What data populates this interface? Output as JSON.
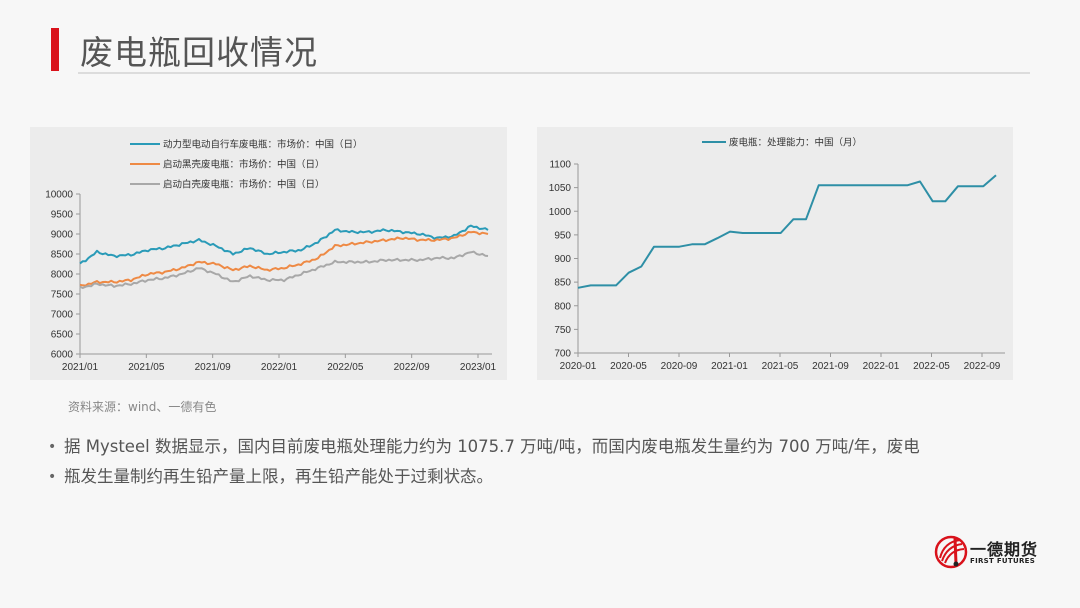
{
  "header": {
    "title": "废电瓶回收情况",
    "accent_color": "#d9121b"
  },
  "left_chart": {
    "legend": [
      {
        "label": "动力型电动自行车废电瓶：市场价：中国（日）",
        "color": "#2a9bb8"
      },
      {
        "label": "启动黑壳废电瓶：市场价：中国（日）",
        "color": "#ee8a45"
      },
      {
        "label": "启动白壳废电瓶：市场价：中国（日）",
        "color": "#a8a8a8"
      }
    ],
    "y_ticks": [
      "10000",
      "9500",
      "9000",
      "8500",
      "8000",
      "7500",
      "7000",
      "6500",
      "6000"
    ],
    "x_ticks": [
      "2021/01",
      "2021/05",
      "2021/09",
      "2022/01",
      "2022/05",
      "2022/09",
      "2023/01"
    ]
  },
  "right_chart": {
    "legend": [
      {
        "label": "废电瓶：处理能力：中国（月）",
        "color": "#2e8fa6"
      }
    ],
    "y_ticks": [
      "1100",
      "1050",
      "1000",
      "950",
      "900",
      "850",
      "800",
      "750",
      "700"
    ],
    "x_ticks": [
      "2020-01",
      "2020-05",
      "2020-09",
      "2021-01",
      "2021-05",
      "2021-09",
      "2022-01",
      "2022-05",
      "2022-09"
    ]
  },
  "chart_data": [
    {
      "type": "line",
      "title": "",
      "xlabel": "",
      "ylabel": "",
      "ylim": [
        6000,
        10000
      ],
      "y_ticks": [
        6000,
        6500,
        7000,
        7500,
        8000,
        8500,
        9000,
        9500,
        10000
      ],
      "x_tick_labels": [
        "2021/01",
        "2021/05",
        "2021/09",
        "2022/01",
        "2022/05",
        "2022/09",
        "2023/01"
      ],
      "legend_position": "top",
      "grid": false,
      "x": [
        "2021/01",
        "2021/02",
        "2021/03",
        "2021/04",
        "2021/05",
        "2021/06",
        "2021/07",
        "2021/08",
        "2021/09",
        "2021/10",
        "2021/11",
        "2021/12",
        "2022/01",
        "2022/02",
        "2022/03",
        "2022/04",
        "2022/05",
        "2022/06",
        "2022/07",
        "2022/08",
        "2022/09",
        "2022/10",
        "2022/11",
        "2022/12",
        "2023/01"
      ],
      "series": [
        {
          "name": "动力型电动自行车废电瓶：市场价：中国（日）",
          "color": "#2a9bb8",
          "values": [
            8250,
            8550,
            8450,
            8480,
            8600,
            8650,
            8750,
            8850,
            8700,
            8500,
            8650,
            8500,
            8550,
            8600,
            8800,
            9100,
            9050,
            9050,
            9100,
            9050,
            9000,
            8900,
            8950,
            9200,
            9100
          ]
        },
        {
          "name": "启动黑壳废电瓶：市场价：中国（日）",
          "color": "#ee8a45",
          "values": [
            7700,
            7800,
            7800,
            7850,
            8000,
            8050,
            8150,
            8300,
            8250,
            8100,
            8200,
            8100,
            8150,
            8250,
            8400,
            8700,
            8750,
            8800,
            8850,
            8900,
            8850,
            8850,
            8900,
            9050,
            9000
          ]
        },
        {
          "name": "启动白壳废电瓶：市场价：中国（日）",
          "color": "#a8a8a8",
          "values": [
            7650,
            7750,
            7700,
            7750,
            7850,
            7900,
            8000,
            8150,
            8000,
            7800,
            7950,
            7850,
            7850,
            8000,
            8150,
            8300,
            8300,
            8300,
            8350,
            8350,
            8350,
            8400,
            8400,
            8550,
            8450
          ]
        }
      ]
    },
    {
      "type": "line",
      "title": "",
      "xlabel": "",
      "ylabel": "",
      "ylim": [
        700,
        1100
      ],
      "y_ticks": [
        700,
        750,
        800,
        850,
        900,
        950,
        1000,
        1050,
        1100
      ],
      "x_tick_labels": [
        "2020-01",
        "2020-05",
        "2020-09",
        "2021-01",
        "2021-05",
        "2021-09",
        "2022-01",
        "2022-05",
        "2022-09"
      ],
      "legend_position": "top",
      "grid": false,
      "x": [
        "2020-01",
        "2020-02",
        "2020-03",
        "2020-04",
        "2020-05",
        "2020-06",
        "2020-07",
        "2020-08",
        "2020-09",
        "2020-10",
        "2020-11",
        "2020-12",
        "2021-01",
        "2021-02",
        "2021-03",
        "2021-04",
        "2021-05",
        "2021-06",
        "2021-07",
        "2021-08",
        "2021-09",
        "2021-10",
        "2021-11",
        "2021-12",
        "2022-01",
        "2022-02",
        "2022-03",
        "2022-04",
        "2022-05",
        "2022-06",
        "2022-07",
        "2022-08",
        "2022-09",
        "2022-10"
      ],
      "series": [
        {
          "name": "废电瓶：处理能力：中国（月）",
          "color": "#2e8fa6",
          "values": [
            838,
            843,
            843,
            843,
            870,
            883,
            925,
            925,
            925,
            930,
            930,
            943,
            957,
            954,
            954,
            954,
            954,
            983,
            983,
            1055,
            1055,
            1055,
            1055,
            1055,
            1055,
            1055,
            1055,
            1063,
            1021,
            1021,
            1053,
            1053,
            1053,
            1076
          ]
        }
      ]
    }
  ],
  "footnote": {
    "source": "资料来源：wind、一德有色"
  },
  "bullets": [
    "据 Mysteel 数据显示，国内目前废电瓶处理能力约为  1075.7 万吨/吨，而国内废电瓶发生量约为  700 万吨/年，废电",
    "瓶发生量制约再生铅产量上限，再生铅产能处于过剩状态。"
  ],
  "logo": {
    "name_cn": "一德期货",
    "name_en": "FIRST FUTURES"
  }
}
